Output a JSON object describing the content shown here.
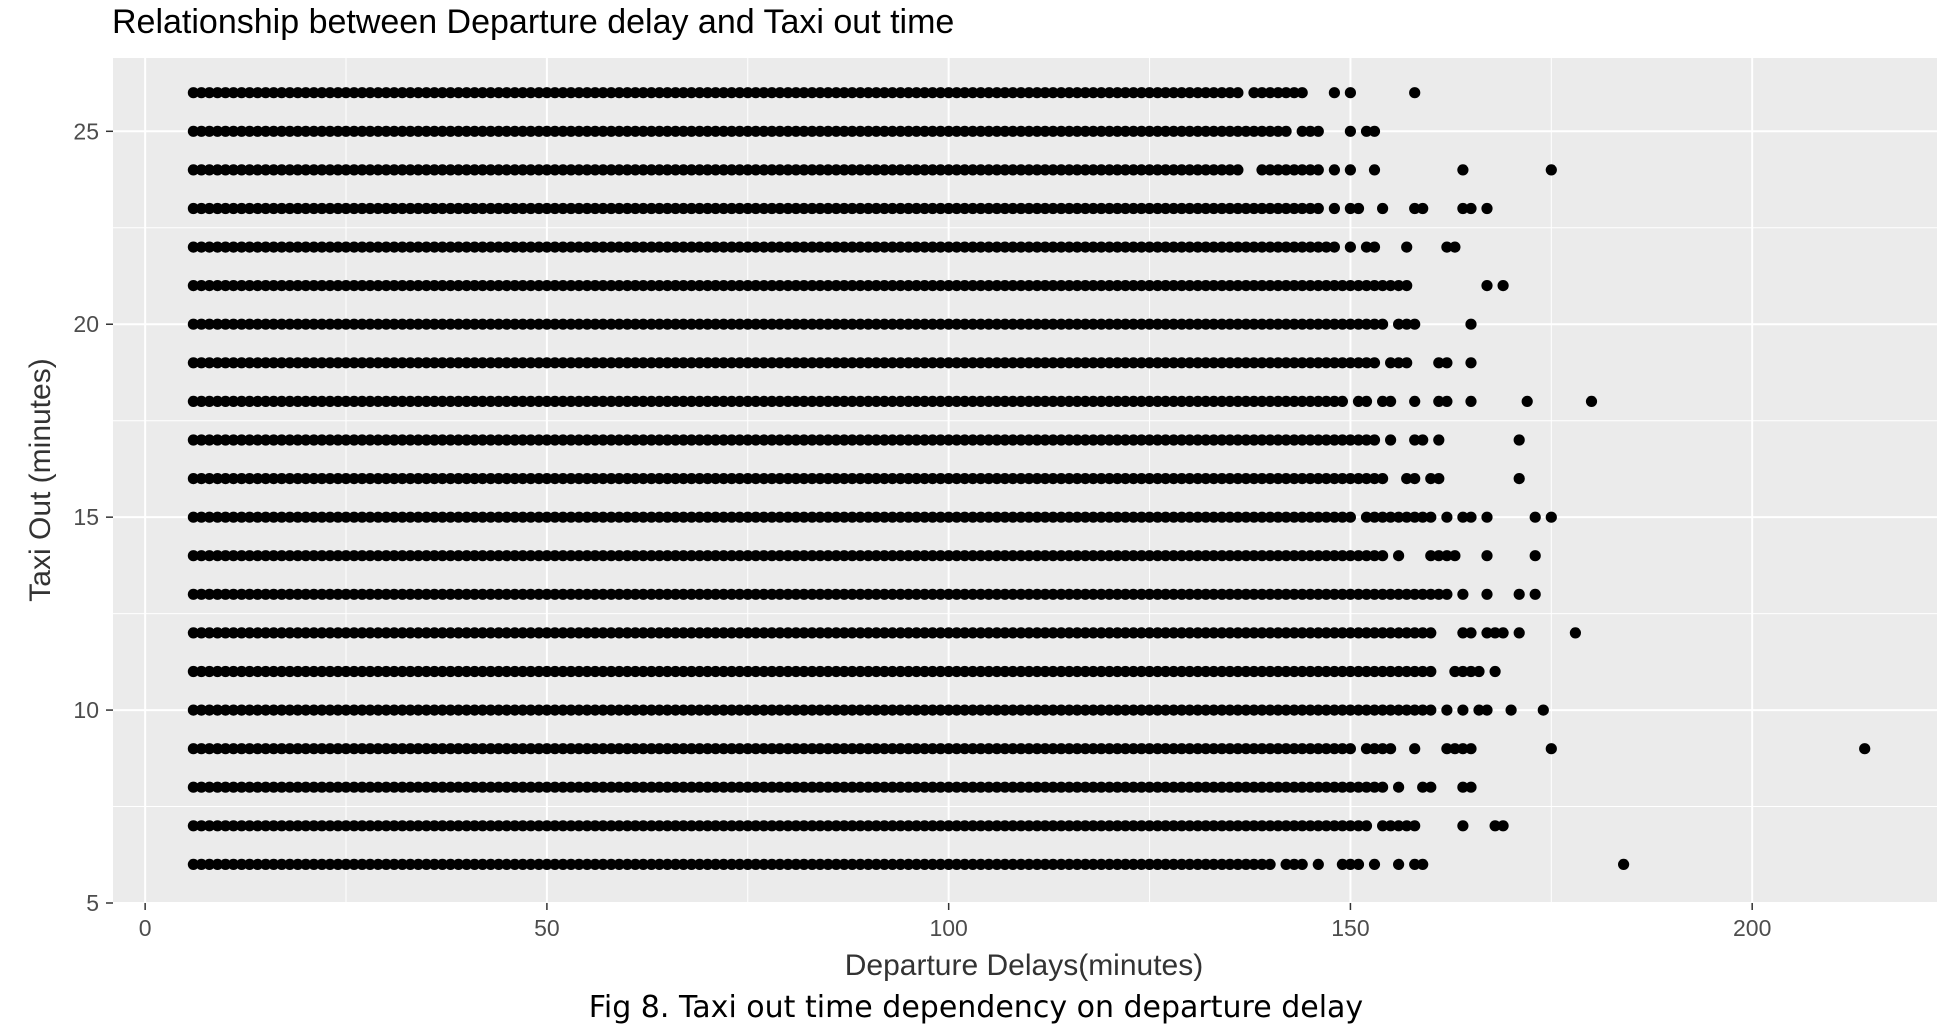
{
  "chart_data": {
    "type": "scatter",
    "title": "Relationship between Departure delay and Taxi out time",
    "xlabel": "Departure Delays(minutes)",
    "ylabel": "Taxi Out (minutes)",
    "xlim": [
      -4,
      223
    ],
    "ylim": [
      5,
      26.9
    ],
    "xticks": [
      0,
      50,
      100,
      150,
      200
    ],
    "yticks": [
      5,
      10,
      15,
      20,
      25
    ],
    "grid": true,
    "background": "#ebebeb",
    "grid_color": "#ffffff",
    "point_color": "#000000",
    "dense_from": 6,
    "dense_step": 1,
    "rows": [
      {
        "y": 26,
        "dense_to": 136,
        "extra": [
          138,
          139,
          140,
          141,
          142,
          143,
          144,
          148,
          150,
          158
        ]
      },
      {
        "y": 25,
        "dense_to": 141,
        "extra": [
          142,
          144,
          145,
          146,
          150,
          152,
          153
        ]
      },
      {
        "y": 24,
        "dense_to": 136,
        "extra": [
          139,
          140,
          141,
          142,
          143,
          144,
          145,
          146,
          148,
          150,
          153,
          164,
          175
        ]
      },
      {
        "y": 23,
        "dense_to": 146,
        "extra": [
          148,
          150,
          151,
          154,
          158,
          159,
          164,
          165,
          167
        ]
      },
      {
        "y": 22,
        "dense_to": 148,
        "extra": [
          150,
          152,
          153,
          157,
          162,
          163
        ]
      },
      {
        "y": 21,
        "dense_to": 153,
        "extra": [
          154,
          155,
          156,
          157,
          167,
          169
        ]
      },
      {
        "y": 20,
        "dense_to": 154,
        "extra": [
          156,
          157,
          158,
          165
        ]
      },
      {
        "y": 19,
        "dense_to": 153,
        "extra": [
          155,
          156,
          157,
          161,
          162,
          165
        ]
      },
      {
        "y": 18,
        "dense_to": 149,
        "extra": [
          151,
          152,
          154,
          155,
          158,
          161,
          162,
          165,
          172,
          180
        ]
      },
      {
        "y": 17,
        "dense_to": 153,
        "extra": [
          155,
          158,
          159,
          161,
          171
        ]
      },
      {
        "y": 16,
        "dense_to": 154,
        "extra": [
          157,
          158,
          160,
          161,
          171
        ]
      },
      {
        "y": 15,
        "dense_to": 150,
        "extra": [
          152,
          153,
          154,
          155,
          156,
          157,
          158,
          159,
          160,
          162,
          164,
          165,
          167,
          173,
          175
        ]
      },
      {
        "y": 14,
        "dense_to": 154,
        "extra": [
          156,
          160,
          161,
          162,
          163,
          167,
          173
        ]
      },
      {
        "y": 13,
        "dense_to": 162,
        "extra": [
          164,
          167,
          171,
          173
        ]
      },
      {
        "y": 12,
        "dense_to": 160,
        "extra": [
          164,
          165,
          167,
          168,
          169,
          171,
          178
        ]
      },
      {
        "y": 11,
        "dense_to": 160,
        "extra": [
          163,
          164,
          165,
          166,
          168
        ]
      },
      {
        "y": 10,
        "dense_to": 160,
        "extra": [
          162,
          164,
          166,
          167,
          170,
          174
        ]
      },
      {
        "y": 9,
        "dense_to": 150,
        "extra": [
          152,
          153,
          154,
          155,
          158,
          162,
          163,
          164,
          165,
          175,
          214
        ]
      },
      {
        "y": 8,
        "dense_to": 154,
        "extra": [
          156,
          159,
          160,
          164,
          165
        ]
      },
      {
        "y": 7,
        "dense_to": 152,
        "extra": [
          154,
          155,
          156,
          157,
          158,
          164,
          168,
          169
        ]
      },
      {
        "y": 6,
        "dense_to": 140,
        "extra": [
          142,
          143,
          144,
          146,
          149,
          150,
          151,
          153,
          156,
          158,
          159,
          184
        ]
      }
    ]
  },
  "caption": "Fig 8. Taxi out time dependency on departure delay"
}
